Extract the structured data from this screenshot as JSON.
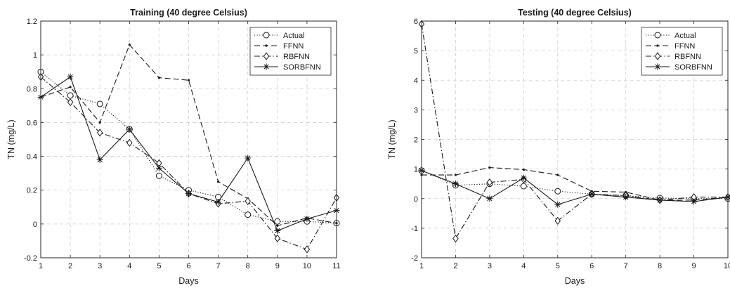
{
  "chart_data": [
    {
      "type": "line",
      "title": "Training (40 degree Celsius)",
      "xlabel": "Days",
      "ylabel": "TN (mg/L)",
      "xlim": [
        1,
        11
      ],
      "ylim": [
        -0.2,
        1.2
      ],
      "x": [
        1,
        2,
        3,
        4,
        5,
        6,
        7,
        8,
        9,
        10,
        11
      ],
      "x_ticks": [
        "1",
        "2",
        "3",
        "4",
        "5",
        "6",
        "7",
        "8",
        "9",
        "10",
        "11"
      ],
      "y_ticks": [
        "-0.2",
        "0",
        "0.2",
        "0.4",
        "0.6",
        "0.8",
        "1",
        "1.2"
      ],
      "y_tick_values": [
        -0.2,
        0,
        0.2,
        0.4,
        0.6,
        0.8,
        1,
        1.2
      ],
      "grid": true,
      "legend_position": "top-right",
      "series": [
        {
          "name": "Actual",
          "style": "dotted",
          "marker": "circle",
          "values": [
            0.9,
            0.76,
            0.71,
            0.56,
            0.285,
            0.2,
            0.16,
            0.055,
            0.015,
            0.015,
            0.005
          ]
        },
        {
          "name": "FFNN",
          "style": "dashed",
          "marker": "point",
          "values": [
            0.75,
            0.81,
            0.6,
            1.06,
            0.865,
            0.85,
            0.25,
            0.15,
            -0.01,
            0.035,
            0.005
          ]
        },
        {
          "name": "RBFNN",
          "style": "dashdot",
          "marker": "diamond",
          "values": [
            0.87,
            0.72,
            0.54,
            0.48,
            0.36,
            0.18,
            0.12,
            0.135,
            -0.085,
            -0.15,
            0.155
          ]
        },
        {
          "name": "SORBFNN",
          "style": "solid",
          "marker": "asterisk",
          "values": [
            0.75,
            0.87,
            0.38,
            0.56,
            0.33,
            0.18,
            0.13,
            0.39,
            -0.04,
            0.03,
            0.08
          ]
        }
      ]
    },
    {
      "type": "line",
      "title": "Testing (40 degree Celsius)",
      "xlabel": "Days",
      "ylabel": "TN (mg/L)",
      "xlim": [
        1,
        10
      ],
      "ylim": [
        -2,
        6
      ],
      "x": [
        1,
        2,
        3,
        4,
        5,
        6,
        7,
        8,
        9,
        10
      ],
      "x_ticks": [
        "1",
        "2",
        "3",
        "4",
        "5",
        "6",
        "7",
        "8",
        "9",
        "10"
      ],
      "y_ticks": [
        "-2",
        "-1",
        "0",
        "1",
        "2",
        "3",
        "4",
        "5",
        "6"
      ],
      "y_tick_values": [
        -2,
        -1,
        0,
        1,
        2,
        3,
        4,
        5,
        6
      ],
      "grid": true,
      "legend_position": "top-right",
      "series": [
        {
          "name": "Actual",
          "style": "dotted",
          "marker": "circle",
          "values": [
            0.95,
            0.45,
            0.5,
            0.42,
            0.25,
            0.15,
            0.1,
            0.02,
            0.0,
            0.0
          ]
        },
        {
          "name": "FFNN",
          "style": "dashed",
          "marker": "point",
          "values": [
            0.8,
            0.8,
            1.05,
            0.98,
            0.8,
            0.25,
            0.22,
            -0.05,
            -0.05,
            0.05
          ]
        },
        {
          "name": "RBFNN",
          "style": "dashdot",
          "marker": "diamond",
          "values": [
            5.9,
            -1.35,
            0.55,
            0.65,
            -0.75,
            0.15,
            0.1,
            -0.05,
            0.05,
            0.05
          ]
        },
        {
          "name": "SORBFNN",
          "style": "solid",
          "marker": "asterisk",
          "values": [
            0.95,
            0.5,
            0.0,
            0.7,
            -0.2,
            0.15,
            0.05,
            -0.05,
            -0.1,
            0.05
          ]
        }
      ]
    }
  ]
}
